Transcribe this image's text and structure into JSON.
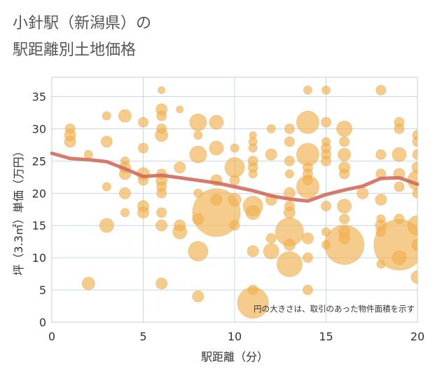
{
  "chart_data": {
    "type": "scatter",
    "title_line1": "小針駅（新潟県）の",
    "title_line2": "駅距離別土地価格",
    "xlabel": "駅距離（分）",
    "ylabel": "坪（3.3㎡）単価（万円）",
    "xlim": [
      0,
      20
    ],
    "ylim": [
      0,
      38
    ],
    "xticks": [
      0,
      5,
      10,
      15,
      20
    ],
    "yticks": [
      0,
      5,
      10,
      15,
      20,
      25,
      30,
      35
    ],
    "annotation": "円の大きさは、取引のあった物件面積を示す",
    "colors": {
      "bubble": "#F1B04E",
      "bubble_edge": "#E8A23D",
      "trend": "#D06C5C",
      "grid": "#C8D8E8",
      "frame": "#CCCCCC"
    },
    "trend_line": {
      "x": [
        0,
        1,
        2,
        3,
        4,
        5,
        6,
        7,
        8,
        9,
        10,
        11,
        12,
        13,
        14,
        15,
        16,
        17,
        18,
        19,
        20
      ],
      "y": [
        26.2,
        25.4,
        25.2,
        24.9,
        23.8,
        22.6,
        22.8,
        22.4,
        22.0,
        21.6,
        21.0,
        20.4,
        19.6,
        19.1,
        18.8,
        19.8,
        20.5,
        21.1,
        22.3,
        22.4,
        21.4
      ]
    },
    "points": [
      {
        "x": 1,
        "y": 30,
        "s": 7
      },
      {
        "x": 1,
        "y": 29,
        "s": 8
      },
      {
        "x": 1,
        "y": 28,
        "s": 8
      },
      {
        "x": 2,
        "y": 26,
        "s": 6
      },
      {
        "x": 2,
        "y": 6,
        "s": 9
      },
      {
        "x": 3,
        "y": 32,
        "s": 6
      },
      {
        "x": 3,
        "y": 28,
        "s": 8
      },
      {
        "x": 3,
        "y": 21,
        "s": 6
      },
      {
        "x": 3,
        "y": 15,
        "s": 10
      },
      {
        "x": 4,
        "y": 32,
        "s": 9
      },
      {
        "x": 4,
        "y": 25,
        "s": 6
      },
      {
        "x": 4,
        "y": 24,
        "s": 8
      },
      {
        "x": 4,
        "y": 23,
        "s": 8
      },
      {
        "x": 4,
        "y": 20,
        "s": 8
      },
      {
        "x": 4,
        "y": 17,
        "s": 6
      },
      {
        "x": 5,
        "y": 31,
        "s": 7
      },
      {
        "x": 5,
        "y": 27,
        "s": 7
      },
      {
        "x": 5,
        "y": 23,
        "s": 9
      },
      {
        "x": 5,
        "y": 22,
        "s": 7
      },
      {
        "x": 5,
        "y": 18,
        "s": 8
      },
      {
        "x": 5,
        "y": 17,
        "s": 8
      },
      {
        "x": 6,
        "y": 36,
        "s": 5
      },
      {
        "x": 6,
        "y": 33,
        "s": 8
      },
      {
        "x": 6,
        "y": 32,
        "s": 7
      },
      {
        "x": 6,
        "y": 30,
        "s": 7
      },
      {
        "x": 6,
        "y": 29,
        "s": 9
      },
      {
        "x": 6,
        "y": 23,
        "s": 7
      },
      {
        "x": 6,
        "y": 22,
        "s": 8
      },
      {
        "x": 6,
        "y": 21,
        "s": 7
      },
      {
        "x": 6,
        "y": 20,
        "s": 7
      },
      {
        "x": 6,
        "y": 17,
        "s": 7
      },
      {
        "x": 6,
        "y": 15,
        "s": 8
      },
      {
        "x": 6,
        "y": 6,
        "s": 8
      },
      {
        "x": 7,
        "y": 33,
        "s": 5
      },
      {
        "x": 7,
        "y": 24,
        "s": 8
      },
      {
        "x": 7,
        "y": 15,
        "s": 8
      },
      {
        "x": 7,
        "y": 14,
        "s": 10
      },
      {
        "x": 8,
        "y": 31,
        "s": 12
      },
      {
        "x": 8,
        "y": 29,
        "s": 6
      },
      {
        "x": 8,
        "y": 26,
        "s": 12
      },
      {
        "x": 8,
        "y": 20,
        "s": 6
      },
      {
        "x": 8,
        "y": 16,
        "s": 8
      },
      {
        "x": 8,
        "y": 11,
        "s": 14
      },
      {
        "x": 8,
        "y": 4,
        "s": 8
      },
      {
        "x": 9,
        "y": 31,
        "s": 10
      },
      {
        "x": 9,
        "y": 27,
        "s": 10
      },
      {
        "x": 9,
        "y": 22,
        "s": 8
      },
      {
        "x": 9,
        "y": 19,
        "s": 8
      },
      {
        "x": 9,
        "y": 17,
        "s": 34
      },
      {
        "x": 10,
        "y": 27,
        "s": 6
      },
      {
        "x": 10,
        "y": 24,
        "s": 14
      },
      {
        "x": 10,
        "y": 22,
        "s": 7
      },
      {
        "x": 10,
        "y": 19,
        "s": 9
      },
      {
        "x": 10,
        "y": 15,
        "s": 7
      },
      {
        "x": 11,
        "y": 29,
        "s": 5
      },
      {
        "x": 11,
        "y": 28,
        "s": 6
      },
      {
        "x": 11,
        "y": 27,
        "s": 6
      },
      {
        "x": 11,
        "y": 25,
        "s": 7
      },
      {
        "x": 11,
        "y": 24,
        "s": 7
      },
      {
        "x": 11,
        "y": 23,
        "s": 6
      },
      {
        "x": 11,
        "y": 18,
        "s": 14
      },
      {
        "x": 11,
        "y": 17,
        "s": 10
      },
      {
        "x": 11,
        "y": 11,
        "s": 8
      },
      {
        "x": 11,
        "y": 5,
        "s": 7
      },
      {
        "x": 11,
        "y": 3,
        "s": 22
      },
      {
        "x": 12,
        "y": 30,
        "s": 6
      },
      {
        "x": 12,
        "y": 26,
        "s": 8
      },
      {
        "x": 12,
        "y": 19,
        "s": 8
      },
      {
        "x": 12,
        "y": 13,
        "s": 7
      },
      {
        "x": 12,
        "y": 11,
        "s": 11
      },
      {
        "x": 13,
        "y": 30,
        "s": 7
      },
      {
        "x": 13,
        "y": 28,
        "s": 7
      },
      {
        "x": 13,
        "y": 25,
        "s": 7
      },
      {
        "x": 13,
        "y": 23,
        "s": 6
      },
      {
        "x": 13,
        "y": 20,
        "s": 8
      },
      {
        "x": 13,
        "y": 18,
        "s": 7
      },
      {
        "x": 13,
        "y": 17,
        "s": 8
      },
      {
        "x": 13,
        "y": 14,
        "s": 20
      },
      {
        "x": 13,
        "y": 12,
        "s": 8
      },
      {
        "x": 13,
        "y": 9,
        "s": 18
      },
      {
        "x": 14,
        "y": 36,
        "s": 6
      },
      {
        "x": 14,
        "y": 31,
        "s": 16
      },
      {
        "x": 14,
        "y": 26,
        "s": 16
      },
      {
        "x": 14,
        "y": 24,
        "s": 7
      },
      {
        "x": 14,
        "y": 23,
        "s": 7
      },
      {
        "x": 14,
        "y": 22,
        "s": 7
      },
      {
        "x": 14,
        "y": 21,
        "s": 16
      },
      {
        "x": 14,
        "y": 13,
        "s": 8
      },
      {
        "x": 14,
        "y": 10,
        "s": 7
      },
      {
        "x": 14,
        "y": 5,
        "s": 7
      },
      {
        "x": 15,
        "y": 36,
        "s": 6
      },
      {
        "x": 15,
        "y": 31,
        "s": 7
      },
      {
        "x": 15,
        "y": 28,
        "s": 6
      },
      {
        "x": 15,
        "y": 27,
        "s": 7
      },
      {
        "x": 15,
        "y": 26,
        "s": 7
      },
      {
        "x": 15,
        "y": 25,
        "s": 7
      },
      {
        "x": 15,
        "y": 18,
        "s": 7
      },
      {
        "x": 15,
        "y": 14,
        "s": 6
      },
      {
        "x": 15,
        "y": 12,
        "s": 6
      },
      {
        "x": 16,
        "y": 30,
        "s": 11
      },
      {
        "x": 16,
        "y": 28,
        "s": 7
      },
      {
        "x": 16,
        "y": 26,
        "s": 9
      },
      {
        "x": 16,
        "y": 24,
        "s": 8
      },
      {
        "x": 16,
        "y": 23,
        "s": 7
      },
      {
        "x": 16,
        "y": 18,
        "s": 10
      },
      {
        "x": 16,
        "y": 16,
        "s": 7
      },
      {
        "x": 16,
        "y": 14,
        "s": 8
      },
      {
        "x": 16,
        "y": 13,
        "s": 8
      },
      {
        "x": 16,
        "y": 12,
        "s": 28
      },
      {
        "x": 17,
        "y": 20,
        "s": 8
      },
      {
        "x": 18,
        "y": 36,
        "s": 7
      },
      {
        "x": 18,
        "y": 26,
        "s": 7
      },
      {
        "x": 18,
        "y": 23,
        "s": 7
      },
      {
        "x": 18,
        "y": 19,
        "s": 8
      },
      {
        "x": 18,
        "y": 16,
        "s": 6
      },
      {
        "x": 18,
        "y": 15,
        "s": 8
      },
      {
        "x": 18,
        "y": 14,
        "s": 7
      },
      {
        "x": 18,
        "y": 9,
        "s": 6
      },
      {
        "x": 19,
        "y": 31,
        "s": 7
      },
      {
        "x": 19,
        "y": 30,
        "s": 7
      },
      {
        "x": 19,
        "y": 26,
        "s": 10
      },
      {
        "x": 19,
        "y": 23,
        "s": 8
      },
      {
        "x": 19,
        "y": 21,
        "s": 7
      },
      {
        "x": 19,
        "y": 16,
        "s": 7
      },
      {
        "x": 19,
        "y": 12,
        "s": 36
      },
      {
        "x": 19,
        "y": 10,
        "s": 10
      },
      {
        "x": 20,
        "y": 29,
        "s": 7
      },
      {
        "x": 20,
        "y": 28,
        "s": 7
      },
      {
        "x": 20,
        "y": 26,
        "s": 7
      },
      {
        "x": 20,
        "y": 24,
        "s": 8
      },
      {
        "x": 20,
        "y": 22,
        "s": 14
      },
      {
        "x": 20,
        "y": 20,
        "s": 7
      },
      {
        "x": 20,
        "y": 15,
        "s": 14
      },
      {
        "x": 20,
        "y": 12,
        "s": 8
      },
      {
        "x": 20,
        "y": 7,
        "s": 9
      }
    ]
  }
}
